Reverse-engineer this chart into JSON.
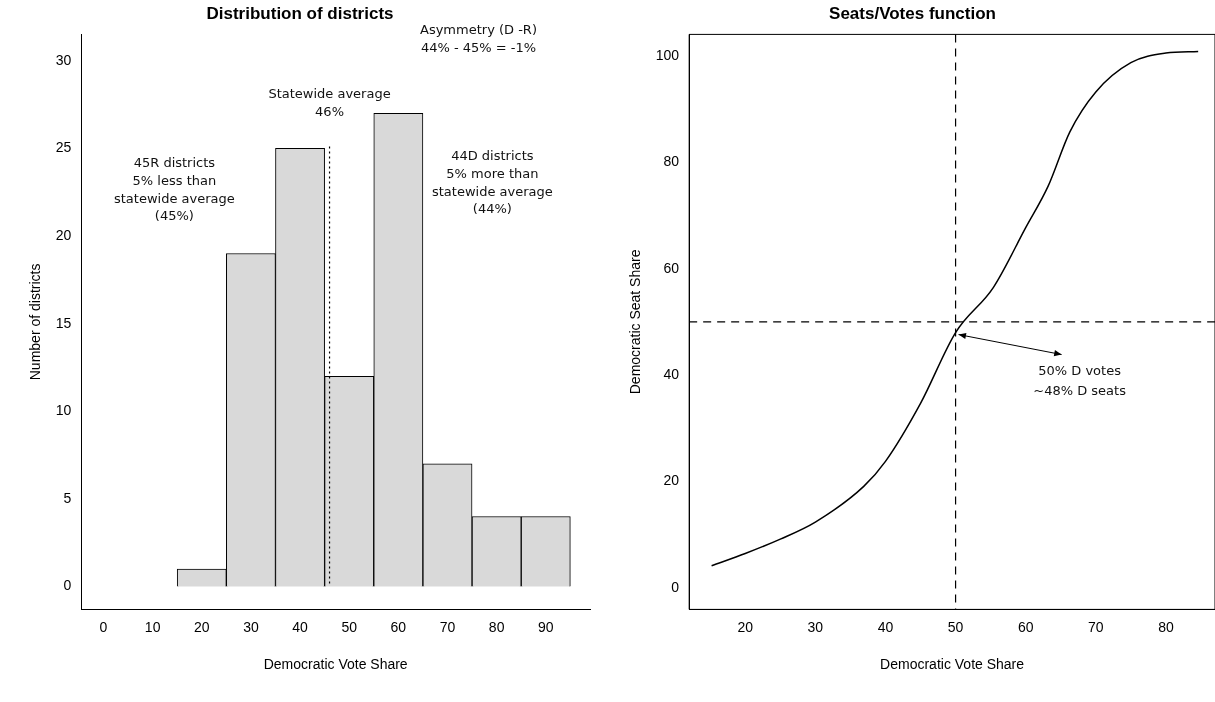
{
  "chart_data": [
    {
      "type": "histogram",
      "title": "Distribution of districts",
      "xlabel": "Democratic Vote Share",
      "ylabel": "Number of districts",
      "bins": [
        5,
        15,
        25,
        35,
        45,
        55,
        65,
        75,
        85,
        95
      ],
      "values": [
        0,
        1,
        19,
        25,
        12,
        27,
        7,
        4,
        4
      ],
      "color": "#d9d9d9",
      "xlim": [
        -4.5,
        99
      ],
      "xticks": [
        0,
        10,
        20,
        30,
        40,
        50,
        60,
        70,
        80,
        90
      ],
      "ylim": [
        -1.3,
        31.5
      ],
      "yticks": [
        0,
        5,
        10,
        15,
        20,
        25,
        30
      ],
      "grid": false,
      "legend": false,
      "ref_lines": [
        {
          "axis": "x",
          "value": 46,
          "label": "Statewide average\n46%",
          "line_style": "dotted",
          "color": "#000000"
        }
      ],
      "annotations": [
        "45R districts\n5% less than\nstatewide average\n(45%)",
        "Asymmetry (D -R)\n44% - 45% = -1%",
        "44D districts\n5% more than\nstatewide average\n(44%)"
      ]
    },
    {
      "type": "line",
      "title": "Seats/Votes function",
      "xlabel": "Democratic Vote Share",
      "ylabel": "Democratic Seat Share",
      "x": [
        15.2,
        20,
        25,
        30,
        36.9,
        40,
        45,
        50,
        55.4,
        60,
        63.2,
        66.3,
        70,
        75,
        80,
        84.6
      ],
      "values": [
        4.2,
        6.5,
        9.2,
        12.4,
        19.1,
        23.8,
        34.7,
        48,
        56.5,
        67.7,
        75.5,
        85.7,
        93.2,
        98.7,
        100.5,
        100.8
      ],
      "color": "#000000",
      "marker": "none",
      "line_style": "solid",
      "xlim": [
        12,
        87
      ],
      "xticks": [
        20,
        30,
        40,
        50,
        60,
        70,
        80
      ],
      "ylim": [
        -4,
        104
      ],
      "yticks": [
        0,
        20,
        40,
        60,
        80,
        100
      ],
      "grid": false,
      "legend": false,
      "ref_lines": [
        {
          "axis": "x",
          "value": 50,
          "line_style": "dashed",
          "color": "#000000"
        },
        {
          "axis": "y",
          "value": 50,
          "line_style": "dashed",
          "color": "#000000"
        }
      ],
      "annotations": [
        {
          "text": "50% D votes\n~48% D seats",
          "x": 50,
          "y": 48
        }
      ]
    }
  ]
}
